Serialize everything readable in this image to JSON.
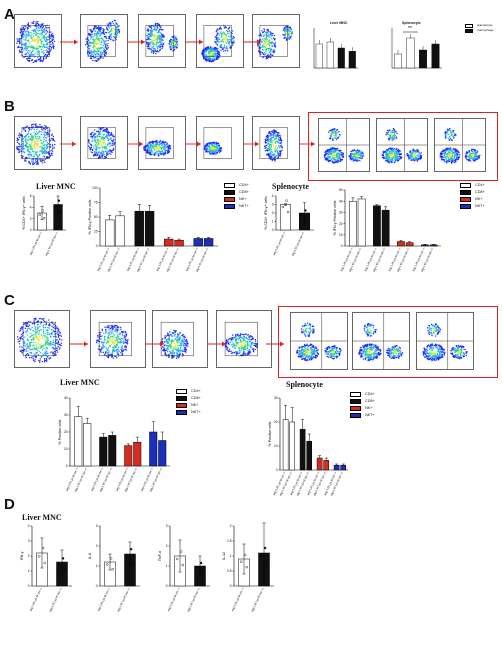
{
  "panels": {
    "A": "A",
    "B": "B",
    "C": "C",
    "D": "D"
  },
  "colors": {
    "gate_arrow": "#d22",
    "highlight_box": "#d22",
    "cd4": "#ffffff",
    "cd8": "#111111",
    "nk": "#d62c20",
    "nkt": "#1b2fb8"
  },
  "panel_a": {
    "liver_title": "Liver MNC",
    "spleno_title": "Splenocyte",
    "legend": [
      "granulocyte",
      "macrophage"
    ],
    "significance": "**"
  },
  "panel_b": {
    "liver_title": "Liver MNC",
    "spleno_title": "Splenocyte",
    "ylabel_cd4": "% CD4+ IFN-γ+ cells",
    "ylabel_ifng": "% IFN-γ Positive cells",
    "legend": [
      "CD4+",
      "CD8+",
      "NK+",
      "NKT+"
    ]
  },
  "panel_c": {
    "liver_title": "Liver MNC",
    "spleno_title": "Splenocyte",
    "ylabel": "% Positive cells",
    "legend": [
      "CD4+",
      "CD8+",
      "NK+",
      "NKT+"
    ]
  },
  "panel_d": {
    "title": "Liver MNC"
  },
  "genotypes": [
    "arg-1 f/f Lys M cre -/-",
    "arg-1 f/f Lys M cre +/-"
  ],
  "chart_data": [
    {
      "id": "B-liver-cd4",
      "type": "bar",
      "categories": [
        "arg-1 f/f Lys M cre -/-",
        "arg-1 f/f Lys M cre +/-"
      ],
      "values": [
        3,
        4.5
      ],
      "errors": [
        1.2,
        1.5
      ],
      "ylim": [
        0,
        6
      ],
      "ylabel": "% CD4+ IFN-γ+ cells"
    },
    {
      "id": "B-liver-ifng",
      "type": "bar",
      "categories": [
        "CD4+",
        "CD8+",
        "NK+",
        "NKT+"
      ],
      "series": [
        {
          "name": "arg-1 f/f Lys M cre -/-",
          "values": [
            45,
            60,
            12,
            13
          ],
          "errors": [
            8,
            12,
            3,
            2
          ]
        },
        {
          "name": "arg-1 f/f Lys M cre +/-",
          "values": [
            52,
            60,
            10,
            13
          ],
          "errors": [
            7,
            10,
            2,
            2
          ]
        }
      ],
      "ylim": [
        0,
        100
      ],
      "ylabel": "% IFN-γ Positive cells"
    },
    {
      "id": "B-spleno-cd4",
      "type": "bar",
      "categories": [
        "arg-1 f/f Lys M cre -/-",
        "arg-1 f/f Lys M cre +/-"
      ],
      "values": [
        3,
        2
      ],
      "errors": [
        0.1,
        1.2
      ],
      "ylim": [
        0,
        4
      ],
      "ylabel": "% CD4+ IFN-γ+ cells"
    },
    {
      "id": "B-spleno-ifng",
      "type": "bar",
      "categories": [
        "CD4+",
        "CD8+",
        "NK+",
        "NKT+"
      ],
      "series": [
        {
          "name": "arg-1 f/f Lys M cre -/-",
          "values": [
            40,
            36,
            4,
            1
          ],
          "errors": [
            3,
            1,
            1,
            0.5
          ]
        },
        {
          "name": "arg-1 f/f Lys M cre +/-",
          "values": [
            42,
            32,
            3,
            1
          ],
          "errors": [
            2,
            3,
            1,
            0.5
          ]
        }
      ],
      "ylim": [
        0,
        50
      ],
      "ylabel": "% IFN-γ Positive cells"
    },
    {
      "id": "C-liver",
      "type": "bar",
      "categories": [
        "CD4+",
        "CD8+",
        "NK+",
        "NKT+"
      ],
      "series": [
        {
          "name": "arg-1 f/f Lys M cre -/-",
          "values": [
            29,
            17,
            12,
            20
          ],
          "errors": [
            6,
            2,
            1,
            6
          ]
        },
        {
          "name": "arg-1 f/f Lys M cre +/-",
          "values": [
            25,
            18,
            14,
            15
          ],
          "errors": [
            3,
            2,
            3,
            5
          ]
        }
      ],
      "ylim": [
        0,
        40
      ],
      "ylabel": "% Positive cells"
    },
    {
      "id": "C-spleno",
      "type": "bar",
      "categories": [
        "CD4+",
        "CD8+",
        "NK+",
        "NKT+"
      ],
      "series": [
        {
          "name": "arg-1 f/f Lys M cre -/-",
          "values": [
            21,
            17,
            5,
            2
          ],
          "errors": [
            6,
            4,
            1,
            0.5
          ]
        },
        {
          "name": "arg-1 f/f Lys M cre +/-",
          "values": [
            20,
            12,
            4,
            2
          ],
          "errors": [
            6,
            3,
            1,
            0.5
          ]
        }
      ],
      "ylim": [
        0,
        30
      ],
      "ylabel": "% Positive cells"
    },
    {
      "id": "D-ifng",
      "type": "bar",
      "categories": [
        "arg-1 f/f Lys M cre -/-",
        "arg-1 f/f Lys M cre +/-"
      ],
      "values": [
        2.2,
        1.6
      ],
      "errors": [
        1.0,
        0.8
      ],
      "ylim": [
        0,
        4
      ],
      "ylabel": "IFN-γ"
    },
    {
      "id": "D-il6",
      "type": "bar",
      "categories": [
        "arg-1 f/f Lys M cre -/-",
        "arg-1 f/f Lys M cre +/-"
      ],
      "values": [
        1.2,
        1.6
      ],
      "errors": [
        0.4,
        0.6
      ],
      "ylim": [
        0,
        3
      ],
      "ylabel": "IL-6"
    },
    {
      "id": "D-tnfa",
      "type": "bar",
      "categories": [
        "arg-1 f/f Lys M cre -/-",
        "arg-1 f/f Lys M cre +/-"
      ],
      "values": [
        1.5,
        1.0
      ],
      "errors": [
        0.8,
        0.5
      ],
      "ylim": [
        0,
        3
      ],
      "ylabel": "TNF-α"
    },
    {
      "id": "D-il12",
      "type": "bar",
      "categories": [
        "arg-1 f/f Lys M cre -/-",
        "arg-1 f/f Lys M cre +/-"
      ],
      "values": [
        0.9,
        1.1
      ],
      "errors": [
        0.5,
        1.0
      ],
      "ylim": [
        0,
        2
      ],
      "ylabel": "IL-12"
    }
  ]
}
